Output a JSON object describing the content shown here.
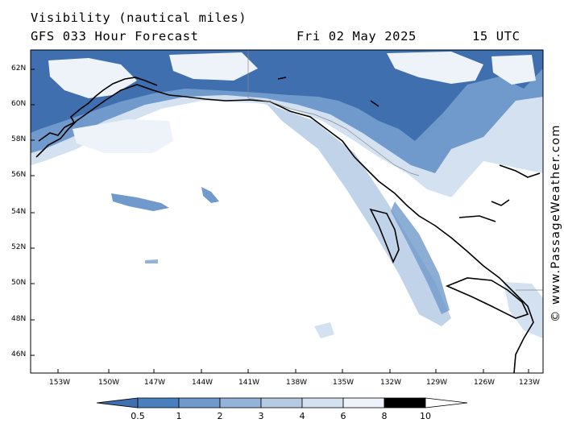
{
  "header": {
    "title": "Visibility (nautical miles)",
    "subtitle": "GFS 033 Hour Forecast",
    "date": "Fri 02 May 2025",
    "time": "15 UTC"
  },
  "credit": "© www.PassageWeather.com",
  "axes": {
    "lat_labels": [
      "62N",
      "60N",
      "58N",
      "56N",
      "54N",
      "52N",
      "50N",
      "48N",
      "46N"
    ],
    "lon_labels": [
      "153W",
      "150W",
      "147W",
      "144W",
      "141W",
      "138W",
      "135W",
      "132W",
      "129W",
      "126W",
      "123W"
    ]
  },
  "colorbar": {
    "labels": [
      "0.5",
      "1",
      "2",
      "3",
      "4",
      "6",
      "8",
      "10"
    ],
    "colors": [
      "#3f6fae",
      "#4a7fbe",
      "#6f9acb",
      "#93b3d8",
      "#b5cbe4",
      "#d4e1f0",
      "#eef3f9"
    ]
  }
}
